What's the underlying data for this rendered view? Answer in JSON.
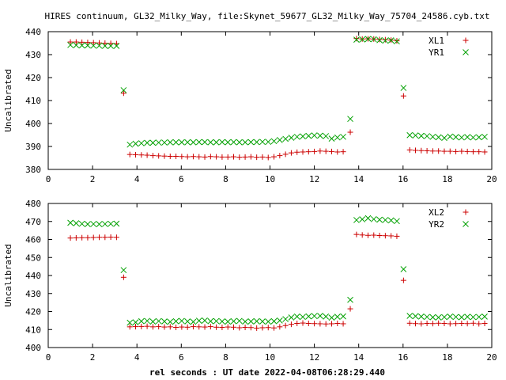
{
  "title": "HIRES continuum, GL32_Milky_Way, file:Skynet_59677_GL32_Milky_Way_75704_24586.cyb.txt",
  "xlabel": "rel seconds : UT date 2022-04-08T06:28:29.440",
  "colors": {
    "red": "#cc0000",
    "green": "#00a000",
    "axis": "#000000"
  },
  "chart_data": [
    {
      "type": "scatter",
      "ylabel": "Uncalibrated",
      "xlim": [
        0,
        20
      ],
      "ylim": [
        380,
        440
      ],
      "xticks": [
        0,
        2,
        4,
        6,
        8,
        10,
        12,
        14,
        16,
        18,
        20
      ],
      "yticks": [
        380,
        390,
        400,
        410,
        420,
        430,
        440
      ],
      "grid": false,
      "legend_position": "top-right",
      "series": [
        {
          "name": "XL1",
          "marker": "plus",
          "color": "#cc0000",
          "x": [
            1.0,
            1.26,
            1.52,
            1.78,
            2.04,
            2.3,
            2.56,
            2.82,
            3.08,
            3.4,
            3.68,
            3.94,
            4.2,
            4.46,
            4.72,
            4.98,
            5.24,
            5.5,
            5.76,
            6.02,
            6.28,
            6.54,
            6.8,
            7.06,
            7.32,
            7.58,
            7.84,
            8.1,
            8.36,
            8.62,
            8.88,
            9.14,
            9.4,
            9.66,
            9.92,
            10.18,
            10.44,
            10.7,
            10.96,
            11.22,
            11.48,
            11.74,
            12.0,
            12.26,
            12.52,
            12.78,
            13.04,
            13.3,
            13.62,
            13.9,
            14.16,
            14.42,
            14.68,
            14.94,
            15.2,
            15.46,
            15.72,
            16.02,
            16.3,
            16.56,
            16.82,
            17.08,
            17.34,
            17.6,
            17.86,
            18.12,
            18.38,
            18.64,
            18.9,
            19.16,
            19.42,
            19.68
          ],
          "y": [
            435.5,
            435.5,
            435.4,
            435.3,
            435.2,
            435.1,
            435.0,
            434.9,
            434.8,
            413.2,
            386.5,
            386.4,
            386.3,
            386.2,
            386.0,
            385.9,
            385.8,
            385.7,
            385.7,
            385.6,
            385.5,
            385.6,
            385.5,
            385.4,
            385.6,
            385.5,
            385.4,
            385.4,
            385.5,
            385.3,
            385.4,
            385.5,
            385.3,
            385.4,
            385.2,
            385.5,
            386.0,
            386.6,
            387.2,
            387.5,
            387.6,
            387.7,
            387.8,
            388.0,
            387.9,
            387.8,
            387.6,
            387.7,
            396.2,
            437.0,
            436.8,
            436.9,
            436.8,
            436.6,
            436.5,
            436.3,
            436.0,
            412.0,
            388.5,
            388.3,
            388.2,
            388.1,
            388.0,
            388.0,
            387.9,
            387.9,
            387.8,
            387.9,
            387.8,
            387.7,
            387.7,
            387.6
          ]
        },
        {
          "name": "YR1",
          "marker": "cross",
          "color": "#00a000",
          "x": [
            1.0,
            1.26,
            1.52,
            1.78,
            2.04,
            2.3,
            2.56,
            2.82,
            3.08,
            3.4,
            3.68,
            3.94,
            4.2,
            4.46,
            4.72,
            4.98,
            5.24,
            5.5,
            5.76,
            6.02,
            6.28,
            6.54,
            6.8,
            7.06,
            7.32,
            7.58,
            7.84,
            8.1,
            8.36,
            8.62,
            8.88,
            9.14,
            9.4,
            9.66,
            9.92,
            10.18,
            10.44,
            10.7,
            10.96,
            11.22,
            11.48,
            11.74,
            12.0,
            12.26,
            12.52,
            12.78,
            13.04,
            13.3,
            13.62,
            13.9,
            14.16,
            14.42,
            14.68,
            14.94,
            15.2,
            15.46,
            15.72,
            16.02,
            16.3,
            16.56,
            16.82,
            17.08,
            17.34,
            17.6,
            17.86,
            18.12,
            18.38,
            18.64,
            18.9,
            19.16,
            19.42,
            19.68
          ],
          "y": [
            434.2,
            434.1,
            434.0,
            434.0,
            433.9,
            433.9,
            433.8,
            433.8,
            433.8,
            414.5,
            390.8,
            391.2,
            391.4,
            391.6,
            391.6,
            391.7,
            391.7,
            391.8,
            391.8,
            391.8,
            391.8,
            391.8,
            391.9,
            391.9,
            391.8,
            391.8,
            391.9,
            391.8,
            391.9,
            391.8,
            391.8,
            391.9,
            391.9,
            392.0,
            392.0,
            392.3,
            392.8,
            393.3,
            393.8,
            394.2,
            394.4,
            394.6,
            394.8,
            394.7,
            394.5,
            393.4,
            393.9,
            394.2,
            402.0,
            436.5,
            436.6,
            436.8,
            436.7,
            436.3,
            436.1,
            436.2,
            435.8,
            415.5,
            394.9,
            394.8,
            394.6,
            394.5,
            394.2,
            394.0,
            393.7,
            394.3,
            394.1,
            393.9,
            394.1,
            393.9,
            394.0,
            394.2
          ]
        }
      ]
    },
    {
      "type": "scatter",
      "ylabel": "Uncalibrated",
      "xlim": [
        0,
        20
      ],
      "ylim": [
        400,
        480
      ],
      "xticks": [
        0,
        2,
        4,
        6,
        8,
        10,
        12,
        14,
        16,
        18,
        20
      ],
      "yticks": [
        400,
        410,
        420,
        430,
        440,
        450,
        460,
        470,
        480
      ],
      "grid": false,
      "legend_position": "top-right",
      "series": [
        {
          "name": "XL2",
          "marker": "plus",
          "color": "#cc0000",
          "x": [
            1.0,
            1.26,
            1.52,
            1.78,
            2.04,
            2.3,
            2.56,
            2.82,
            3.08,
            3.4,
            3.68,
            3.94,
            4.2,
            4.46,
            4.72,
            4.98,
            5.24,
            5.5,
            5.76,
            6.02,
            6.28,
            6.54,
            6.8,
            7.06,
            7.32,
            7.58,
            7.84,
            8.1,
            8.36,
            8.62,
            8.88,
            9.14,
            9.4,
            9.66,
            9.92,
            10.18,
            10.44,
            10.7,
            10.96,
            11.22,
            11.48,
            11.74,
            12.0,
            12.26,
            12.52,
            12.78,
            13.04,
            13.3,
            13.62,
            13.9,
            14.16,
            14.42,
            14.68,
            14.94,
            15.2,
            15.46,
            15.72,
            16.02,
            16.3,
            16.56,
            16.82,
            17.08,
            17.34,
            17.6,
            17.86,
            18.12,
            18.38,
            18.64,
            18.9,
            19.16,
            19.42,
            19.68
          ],
          "y": [
            460.8,
            460.9,
            461.0,
            461.0,
            461.1,
            461.2,
            461.2,
            461.3,
            461.2,
            439.0,
            411.5,
            411.6,
            411.7,
            411.8,
            411.5,
            411.6,
            411.4,
            411.5,
            411.2,
            411.4,
            411.3,
            411.6,
            411.5,
            411.4,
            411.6,
            411.3,
            411.2,
            411.4,
            411.3,
            411.0,
            411.2,
            411.1,
            410.8,
            411.0,
            411.1,
            410.9,
            411.5,
            412.2,
            412.9,
            413.4,
            413.6,
            413.4,
            413.3,
            413.2,
            413.1,
            413.2,
            413.4,
            413.2,
            421.5,
            462.8,
            462.5,
            462.3,
            462.4,
            462.2,
            462.1,
            462.0,
            461.8,
            437.3,
            413.5,
            413.3,
            413.2,
            413.4,
            413.3,
            413.5,
            413.4,
            413.2,
            413.3,
            413.4,
            413.3,
            413.5,
            413.2,
            413.4
          ]
        },
        {
          "name": "YR2",
          "marker": "cross",
          "color": "#00a000",
          "x": [
            1.0,
            1.26,
            1.52,
            1.78,
            2.04,
            2.3,
            2.56,
            2.82,
            3.08,
            3.4,
            3.68,
            3.94,
            4.2,
            4.46,
            4.72,
            4.98,
            5.24,
            5.5,
            5.76,
            6.02,
            6.28,
            6.54,
            6.8,
            7.06,
            7.32,
            7.58,
            7.84,
            8.1,
            8.36,
            8.62,
            8.88,
            9.14,
            9.4,
            9.66,
            9.92,
            10.18,
            10.44,
            10.7,
            10.96,
            11.22,
            11.48,
            11.74,
            12.0,
            12.26,
            12.52,
            12.78,
            13.04,
            13.3,
            13.62,
            13.9,
            14.16,
            14.42,
            14.68,
            14.94,
            15.2,
            15.46,
            15.72,
            16.02,
            16.3,
            16.56,
            16.82,
            17.08,
            17.34,
            17.6,
            17.86,
            18.12,
            18.38,
            18.64,
            18.9,
            19.16,
            19.42,
            19.68
          ],
          "y": [
            469.3,
            469.0,
            468.7,
            468.5,
            468.6,
            468.5,
            468.6,
            468.7,
            468.8,
            443.0,
            413.8,
            414.0,
            414.6,
            414.8,
            414.4,
            414.7,
            414.5,
            414.3,
            414.6,
            414.8,
            414.5,
            414.3,
            414.9,
            415.0,
            414.6,
            414.7,
            414.5,
            414.4,
            414.6,
            414.8,
            414.4,
            414.5,
            414.6,
            414.5,
            414.4,
            414.6,
            415.0,
            415.8,
            416.7,
            417.2,
            417.0,
            417.3,
            417.5,
            417.6,
            417.2,
            416.6,
            417.1,
            417.3,
            426.5,
            470.8,
            471.2,
            471.8,
            471.3,
            471.0,
            470.8,
            470.6,
            470.2,
            443.5,
            417.6,
            417.4,
            417.2,
            417.0,
            416.8,
            416.7,
            416.9,
            417.2,
            417.0,
            416.8,
            417.1,
            416.9,
            417.0,
            417.2
          ]
        }
      ]
    }
  ]
}
